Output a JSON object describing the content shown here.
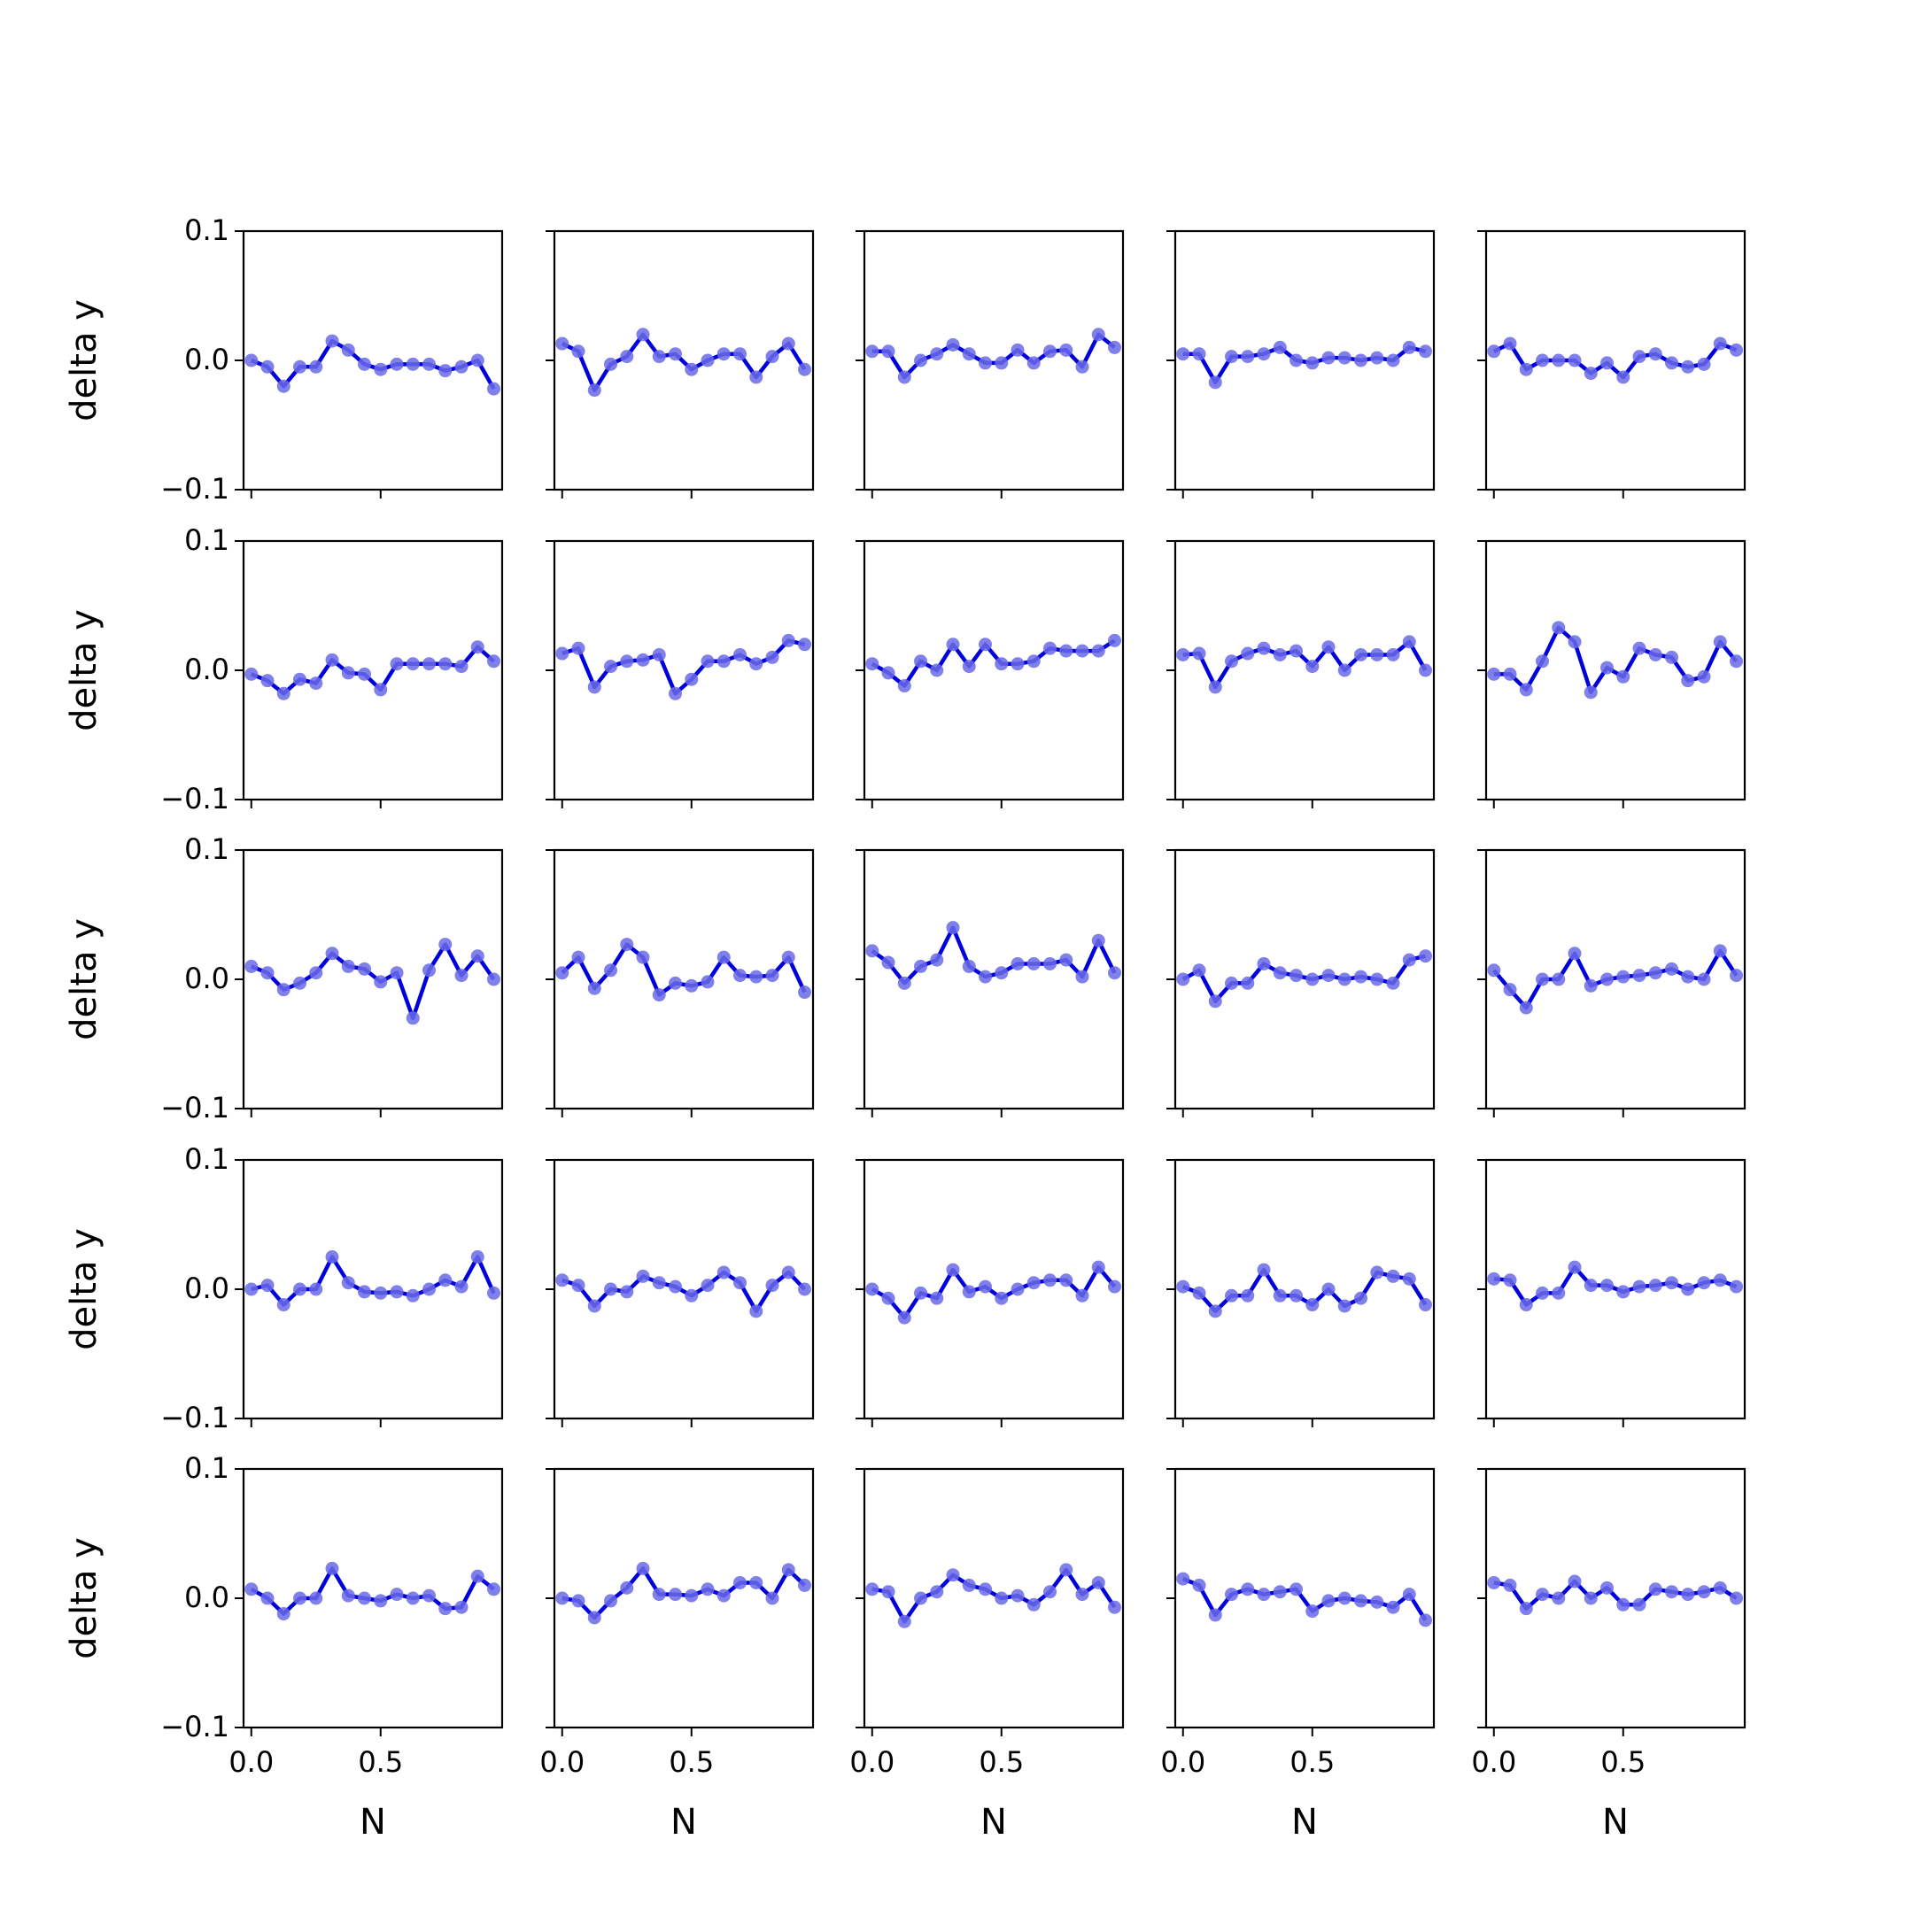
{
  "chart_data": {
    "type": "line",
    "layout": "5x5 grid of small multiples, shared axes",
    "xlabel": "N",
    "ylabel": "delta y",
    "xlim": [
      -0.03,
      0.97
    ],
    "ylim": [
      -0.1,
      0.1
    ],
    "xticks": [
      "0.0",
      "0.5"
    ],
    "xtick_values": [
      0.0,
      0.5
    ],
    "yticks": [
      "−0.1",
      "0.0",
      "0.1"
    ],
    "ytick_values": [
      -0.1,
      0.0,
      0.1
    ],
    "x": [
      0.0,
      0.0625,
      0.125,
      0.1875,
      0.25,
      0.3125,
      0.375,
      0.4375,
      0.5,
      0.5625,
      0.625,
      0.6875,
      0.75,
      0.8125,
      0.875,
      0.9375
    ],
    "line_color": "#0000dd",
    "marker_color": "#6a6ae8",
    "panels": [
      {
        "row": 1,
        "col": 1,
        "values": [
          0.0,
          -0.005,
          -0.02,
          -0.005,
          -0.005,
          0.015,
          0.008,
          -0.003,
          -0.007,
          -0.003,
          -0.003,
          -0.003,
          -0.008,
          -0.005,
          0.0,
          -0.022
        ]
      },
      {
        "row": 1,
        "col": 2,
        "values": [
          0.013,
          0.007,
          -0.023,
          -0.003,
          0.003,
          0.02,
          0.003,
          0.005,
          -0.007,
          0.0,
          0.005,
          0.005,
          -0.013,
          0.003,
          0.013,
          -0.007
        ]
      },
      {
        "row": 1,
        "col": 3,
        "values": [
          0.007,
          0.007,
          -0.013,
          0.0,
          0.005,
          0.012,
          0.005,
          -0.002,
          -0.002,
          0.008,
          -0.002,
          0.007,
          0.008,
          -0.005,
          0.02,
          0.01
        ]
      },
      {
        "row": 1,
        "col": 4,
        "values": [
          0.005,
          0.005,
          -0.017,
          0.003,
          0.003,
          0.005,
          0.01,
          0.0,
          -0.002,
          0.002,
          0.002,
          0.0,
          0.002,
          0.0,
          0.01,
          0.007
        ]
      },
      {
        "row": 1,
        "col": 5,
        "values": [
          0.007,
          0.013,
          -0.007,
          0.0,
          0.0,
          0.0,
          -0.01,
          -0.002,
          -0.013,
          0.003,
          0.005,
          -0.002,
          -0.005,
          -0.003,
          0.013,
          0.008
        ]
      },
      {
        "row": 2,
        "col": 1,
        "values": [
          -0.003,
          -0.008,
          -0.018,
          -0.007,
          -0.01,
          0.008,
          -0.002,
          -0.003,
          -0.015,
          0.005,
          0.005,
          0.005,
          0.005,
          0.003,
          0.018,
          0.007
        ]
      },
      {
        "row": 2,
        "col": 2,
        "values": [
          0.013,
          0.017,
          -0.013,
          0.003,
          0.007,
          0.008,
          0.012,
          -0.018,
          -0.007,
          0.007,
          0.007,
          0.012,
          0.005,
          0.01,
          0.023,
          0.02
        ]
      },
      {
        "row": 2,
        "col": 3,
        "values": [
          0.005,
          -0.002,
          -0.012,
          0.007,
          0.0,
          0.02,
          0.003,
          0.02,
          0.005,
          0.005,
          0.007,
          0.017,
          0.015,
          0.015,
          0.015,
          0.023
        ]
      },
      {
        "row": 2,
        "col": 4,
        "values": [
          0.012,
          0.013,
          -0.013,
          0.007,
          0.013,
          0.017,
          0.012,
          0.015,
          0.003,
          0.018,
          0.0,
          0.012,
          0.012,
          0.012,
          0.022,
          0.0
        ]
      },
      {
        "row": 2,
        "col": 5,
        "values": [
          -0.003,
          -0.003,
          -0.015,
          0.007,
          0.033,
          0.022,
          -0.017,
          0.002,
          -0.005,
          0.017,
          0.012,
          0.01,
          -0.008,
          -0.005,
          0.022,
          0.007
        ]
      },
      {
        "row": 3,
        "col": 1,
        "values": [
          0.01,
          0.005,
          -0.008,
          -0.003,
          0.005,
          0.02,
          0.01,
          0.008,
          -0.002,
          0.005,
          -0.03,
          0.007,
          0.027,
          0.003,
          0.018,
          0.0
        ]
      },
      {
        "row": 3,
        "col": 2,
        "values": [
          0.005,
          0.017,
          -0.007,
          0.007,
          0.027,
          0.017,
          -0.012,
          -0.003,
          -0.005,
          -0.002,
          0.017,
          0.003,
          0.002,
          0.003,
          0.017,
          -0.01
        ]
      },
      {
        "row": 3,
        "col": 3,
        "values": [
          0.022,
          0.013,
          -0.003,
          0.01,
          0.015,
          0.04,
          0.01,
          0.002,
          0.005,
          0.012,
          0.012,
          0.012,
          0.015,
          0.002,
          0.03,
          0.005
        ]
      },
      {
        "row": 3,
        "col": 4,
        "values": [
          0.0,
          0.007,
          -0.017,
          -0.003,
          -0.003,
          0.012,
          0.005,
          0.003,
          0.0,
          0.003,
          0.0,
          0.002,
          0.0,
          -0.003,
          0.015,
          0.018
        ]
      },
      {
        "row": 3,
        "col": 5,
        "values": [
          0.007,
          -0.008,
          -0.022,
          0.0,
          0.0,
          0.02,
          -0.005,
          0.0,
          0.002,
          0.003,
          0.005,
          0.008,
          0.002,
          0.0,
          0.022,
          0.003
        ]
      },
      {
        "row": 4,
        "col": 1,
        "values": [
          0.0,
          0.003,
          -0.012,
          0.0,
          0.0,
          0.025,
          0.005,
          -0.002,
          -0.003,
          -0.002,
          -0.005,
          0.0,
          0.007,
          0.002,
          0.025,
          -0.003
        ]
      },
      {
        "row": 4,
        "col": 2,
        "values": [
          0.007,
          0.003,
          -0.013,
          0.0,
          -0.002,
          0.01,
          0.005,
          0.002,
          -0.005,
          0.003,
          0.013,
          0.005,
          -0.017,
          0.003,
          0.013,
          0.0
        ]
      },
      {
        "row": 4,
        "col": 3,
        "values": [
          0.0,
          -0.007,
          -0.022,
          -0.003,
          -0.007,
          0.015,
          -0.002,
          0.002,
          -0.007,
          0.0,
          0.005,
          0.007,
          0.007,
          -0.005,
          0.017,
          0.002
        ]
      },
      {
        "row": 4,
        "col": 4,
        "values": [
          0.002,
          -0.003,
          -0.017,
          -0.005,
          -0.005,
          0.015,
          -0.005,
          -0.005,
          -0.012,
          0.0,
          -0.013,
          -0.007,
          0.013,
          0.01,
          0.008,
          -0.012
        ]
      },
      {
        "row": 4,
        "col": 5,
        "values": [
          0.008,
          0.007,
          -0.012,
          -0.003,
          -0.003,
          0.017,
          0.003,
          0.003,
          -0.002,
          0.002,
          0.003,
          0.005,
          0.0,
          0.005,
          0.007,
          0.002
        ]
      },
      {
        "row": 5,
        "col": 1,
        "values": [
          0.007,
          0.0,
          -0.012,
          0.0,
          0.0,
          0.023,
          0.002,
          0.0,
          -0.002,
          0.003,
          0.0,
          0.002,
          -0.008,
          -0.007,
          0.017,
          0.007
        ]
      },
      {
        "row": 5,
        "col": 2,
        "values": [
          0.0,
          -0.002,
          -0.015,
          -0.002,
          0.008,
          0.023,
          0.003,
          0.003,
          0.002,
          0.007,
          0.002,
          0.012,
          0.012,
          0.0,
          0.022,
          0.01
        ]
      },
      {
        "row": 5,
        "col": 3,
        "values": [
          0.007,
          0.005,
          -0.018,
          0.0,
          0.005,
          0.018,
          0.01,
          0.007,
          0.0,
          0.002,
          -0.005,
          0.005,
          0.022,
          0.003,
          0.012,
          -0.007
        ]
      },
      {
        "row": 5,
        "col": 4,
        "values": [
          0.015,
          0.01,
          -0.013,
          0.003,
          0.007,
          0.003,
          0.005,
          0.007,
          -0.01,
          -0.002,
          0.0,
          -0.002,
          -0.003,
          -0.007,
          0.003,
          -0.017
        ]
      },
      {
        "row": 5,
        "col": 5,
        "values": [
          0.012,
          0.01,
          -0.008,
          0.003,
          0.0,
          0.013,
          0.0,
          0.008,
          -0.005,
          -0.005,
          0.007,
          0.005,
          0.003,
          0.005,
          0.008,
          0.0
        ]
      }
    ]
  }
}
